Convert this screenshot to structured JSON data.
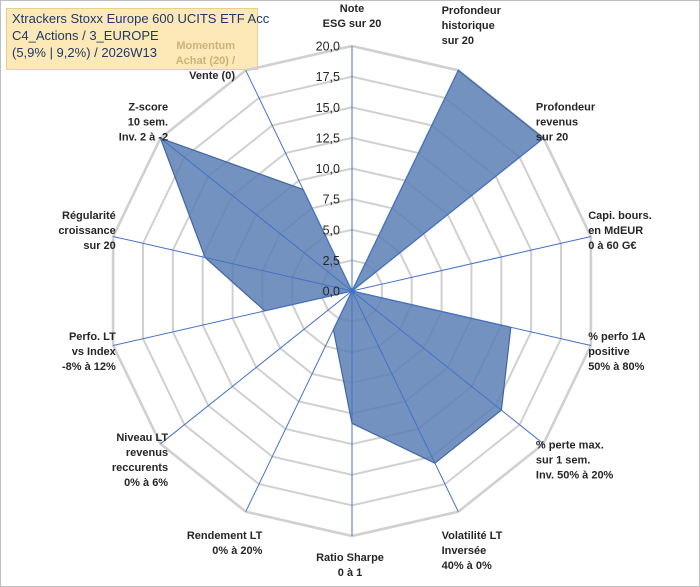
{
  "header": {
    "line1": "Xtrackers Stoxx Europe 600 UCITS ETF Acc",
    "line2": "C4_Actions / 3_EUROPE",
    "line3": "(5,9% | 9,2%) / 2026W13"
  },
  "chart_data": {
    "type": "radar",
    "title": "",
    "rmax": 20,
    "ticks": [
      "0,0",
      "2,5",
      "5,0",
      "7,5",
      "10,0",
      "12,5",
      "15,0",
      "17,5",
      "20,0"
    ],
    "grid": true,
    "fill_color": "#5b7fb5",
    "axes": [
      {
        "label": [
          "Note",
          "ESG sur 20"
        ],
        "value": 0
      },
      {
        "label": [
          "Profondeur",
          "historique",
          "sur 20"
        ],
        "value": 20
      },
      {
        "label": [
          "Profondeur",
          "revenus",
          "sur 20"
        ],
        "value": 20
      },
      {
        "label": [
          "Capi. bours.",
          "en MdEUR",
          "0 à 60 G€"
        ],
        "value": 0
      },
      {
        "label": [
          "% perfo 1A",
          "positive",
          "50% à 80%"
        ],
        "value": 13.3
      },
      {
        "label": [
          "% perte max.",
          "sur 1 sem.",
          "Inv. 50% à 20%"
        ],
        "value": 15.6
      },
      {
        "label": [
          "Volatilité LT",
          "Inversée",
          "40% à 0%"
        ],
        "value": 15.6
      },
      {
        "label": [
          "Ratio Sharpe",
          "0 à 1"
        ],
        "value": 10.8
      },
      {
        "label": [
          "Rendement LT",
          "0% à 20%"
        ],
        "value": 3.5
      },
      {
        "label": [
          "Niveau LT",
          "revenus",
          "reccurents",
          "0% à 6%"
        ],
        "value": 0
      },
      {
        "label": [
          "Perfo. LT",
          "vs Index",
          "-8% à 12%"
        ],
        "value": 7.3
      },
      {
        "label": [
          "Régularité",
          "croissance",
          "sur 20"
        ],
        "value": 12.3
      },
      {
        "label": [
          "Z-score",
          "10 sem.",
          "Inv. 2 à -2"
        ],
        "value": 20
      },
      {
        "label": [
          "Momentum",
          "Achat (20) /",
          "Vente (0)"
        ],
        "value": 9.2
      }
    ]
  }
}
